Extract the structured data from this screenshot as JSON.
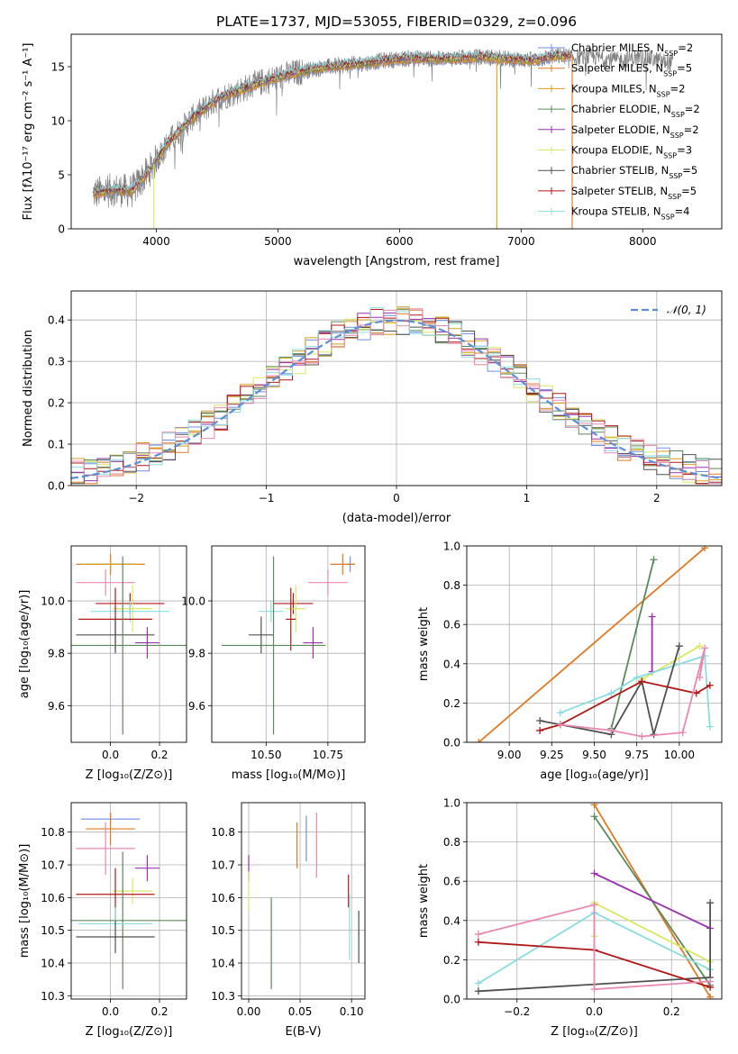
{
  "colors": {
    "Chabrier MILES": "#6f8fe0",
    "Salpeter MILES": "#e07820",
    "Kroupa MILES": "#d4a018",
    "Chabrier ELODIE": "#5a8a5a",
    "Salpeter ELODIE": "#9b30b0",
    "Kroupa ELODIE": "#d8e860",
    "Chabrier STELIB": "#505050",
    "Salpeter STELIB": "#b01818",
    "Kroupa STELIB": "#88dde0",
    "extra_pink": "#e888b0",
    "gauss": "#5b8fd8",
    "spectrum": "#808080"
  },
  "chart_data": [
    {
      "id": "spectrum",
      "type": "line",
      "title": "PLATE=1737, MJD=53055, FIBERID=0329, z=0.096",
      "xlabel": "wavelength [Angstrom, rest frame]",
      "ylabel": "Flux [fλ10⁻¹⁷ erg cm⁻² s⁻¹ A⁻¹]",
      "xlim": [
        3300,
        8650
      ],
      "ylim": [
        0,
        18
      ],
      "xticks": [
        4000,
        5000,
        6000,
        7000,
        8000
      ],
      "yticks": [
        0,
        5,
        10,
        15
      ],
      "legend": [
        {
          "model": "Chabrier MILES",
          "nssp": "2"
        },
        {
          "model": "Salpeter MILES",
          "nssp": "5"
        },
        {
          "model": "Kroupa MILES",
          "nssp": "2"
        },
        {
          "model": "Chabrier ELODIE",
          "nssp": "2"
        },
        {
          "model": "Salpeter ELODIE",
          "nssp": "2"
        },
        {
          "model": "Kroupa ELODIE",
          "nssp": "3"
        },
        {
          "model": "Chabrier STELIB",
          "nssp": "5"
        },
        {
          "model": "Salpeter STELIB",
          "nssp": "5"
        },
        {
          "model": "Kroupa STELIB",
          "nssp": "4"
        }
      ],
      "legend_label_template": "N_SSP=",
      "continuum": {
        "x": [
          3500,
          3650,
          3800,
          3950,
          4100,
          4300,
          4500,
          4700,
          4900,
          5100,
          5300,
          5500,
          5700,
          5900,
          6100,
          6300,
          6500,
          6700,
          6900,
          7100,
          7300,
          7400
        ],
        "y": [
          3.3,
          3.6,
          3.5,
          5.5,
          8.0,
          10.3,
          12.0,
          12.9,
          13.7,
          14.3,
          14.8,
          15.1,
          15.3,
          15.6,
          15.8,
          15.7,
          15.8,
          15.9,
          15.7,
          15.6,
          16.0,
          16.0
        ]
      },
      "data_extension": {
        "x": [
          7400,
          7600,
          7800,
          8000,
          8200
        ],
        "y": [
          15.8,
          15.9,
          15.6,
          15.9,
          15.4
        ]
      },
      "model_cutoffs": [
        {
          "x": 3980,
          "series": "Kroupa ELODIE"
        },
        {
          "x": 6800,
          "series": "Kroupa MILES"
        },
        {
          "x": 7420,
          "series": "Salpeter MILES"
        }
      ]
    },
    {
      "id": "residuals",
      "type": "histogram",
      "xlabel": "(data-model)/error",
      "ylabel": "Normed distribution",
      "xlim": [
        -2.5,
        2.5
      ],
      "ylim": [
        0,
        0.47
      ],
      "xticks": [
        -2,
        -1,
        0,
        1,
        2
      ],
      "yticks": [
        0.0,
        0.1,
        0.2,
        0.3,
        0.4
      ],
      "legend_label": "𝒩(0, 1)",
      "gaussian": {
        "mean": 0,
        "sigma": 1
      },
      "bin_edges_range": [
        -2.5,
        2.5
      ],
      "n_bins": 50,
      "series": [
        "Chabrier MILES",
        "Salpeter MILES",
        "Kroupa MILES",
        "Chabrier ELODIE",
        "Salpeter ELODIE",
        "Kroupa ELODIE",
        "Chabrier STELIB",
        "Salpeter STELIB",
        "Kroupa STELIB",
        "extra_pink"
      ]
    },
    {
      "id": "z_age",
      "type": "errorbar",
      "xlabel": "Z [log₁₀(Z/Z⊙)]",
      "ylabel": "age  [log₁₀(age/yr)]",
      "xlim": [
        -0.16,
        0.31
      ],
      "ylim": [
        9.46,
        10.21
      ],
      "xticks": [
        0.0,
        0.2
      ],
      "yticks": [
        9.6,
        9.8,
        10.0
      ],
      "points": [
        {
          "series": "Chabrier MILES",
          "x": 0.0,
          "xerr": 0.1,
          "y": 10.14,
          "yerr": 0.03
        },
        {
          "series": "Salpeter MILES",
          "x": 0.0,
          "xerr": 0.14,
          "y": 10.14,
          "yerr": 0.04
        },
        {
          "series": "Kroupa MILES",
          "x": 0.0,
          "xerr": 0.12,
          "y": 10.14,
          "yerr": 0.02
        },
        {
          "series": "extra_pink",
          "x": -0.02,
          "xerr": 0.12,
          "y": 10.07,
          "yerr": 0.05
        },
        {
          "series": "Salpeter STELIB",
          "x": 0.08,
          "xerr": 0.14,
          "y": 9.99,
          "yerr": 0.04
        },
        {
          "series": "Kroupa ELODIE",
          "x": 0.09,
          "xerr": 0.08,
          "y": 9.97,
          "yerr": 0.09
        },
        {
          "series": "Kroupa STELIB",
          "x": 0.08,
          "xerr": 0.16,
          "y": 9.96,
          "yerr": 0.04
        },
        {
          "series": "Salpeter STELIB",
          "x": 0.02,
          "xerr": 0.15,
          "y": 9.93,
          "yerr": 0.12
        },
        {
          "series": "Chabrier STELIB",
          "x": 0.02,
          "xerr": 0.16,
          "y": 9.87,
          "yerr": 0.07
        },
        {
          "series": "Salpeter ELODIE",
          "x": 0.15,
          "xerr": 0.05,
          "y": 9.84,
          "yerr": 0.06
        },
        {
          "series": "Chabrier ELODIE",
          "x": 0.05,
          "xerr": 0.26,
          "y": 9.83,
          "yerr": 0.34
        }
      ]
    },
    {
      "id": "mass_age",
      "type": "errorbar",
      "xlabel": "mass [log₁₀(M/M⊙)]",
      "ylabel": "",
      "xlim": [
        10.28,
        10.9
      ],
      "ylim": [
        9.46,
        10.21
      ],
      "xticks": [
        10.5,
        10.75
      ],
      "yticks": [
        9.6,
        9.8,
        10.0
      ],
      "points": [
        {
          "series": "Chabrier MILES",
          "x": 10.84,
          "xerr": 0.02,
          "y": 10.14,
          "yerr": 0.03
        },
        {
          "series": "Salpeter MILES",
          "x": 10.81,
          "xerr": 0.05,
          "y": 10.14,
          "yerr": 0.04
        },
        {
          "series": "extra_pink",
          "x": 10.75,
          "xerr": 0.08,
          "y": 10.07,
          "yerr": 0.05
        },
        {
          "series": "Salpeter STELIB",
          "x": 10.61,
          "xerr": 0.08,
          "y": 9.99,
          "yerr": 0.04
        },
        {
          "series": "Kroupa ELODIE",
          "x": 10.62,
          "xerr": 0.04,
          "y": 9.97,
          "yerr": 0.09
        },
        {
          "series": "Kroupa STELIB",
          "x": 10.52,
          "xerr": 0.05,
          "y": 9.96,
          "yerr": 0.04
        },
        {
          "series": "Salpeter STELIB",
          "x": 10.6,
          "xerr": 0.02,
          "y": 9.93,
          "yerr": 0.12
        },
        {
          "series": "Chabrier STELIB",
          "x": 10.48,
          "xerr": 0.05,
          "y": 9.87,
          "yerr": 0.07
        },
        {
          "series": "Salpeter ELODIE",
          "x": 10.69,
          "xerr": 0.04,
          "y": 9.84,
          "yerr": 0.06
        },
        {
          "series": "Chabrier ELODIE",
          "x": 10.53,
          "xerr": 0.21,
          "y": 9.83,
          "yerr": 0.34
        }
      ]
    },
    {
      "id": "age_weight",
      "type": "line",
      "xlabel": "age  [log₁₀(age/yr)]",
      "ylabel": "mass weight",
      "xlim": [
        8.75,
        10.25
      ],
      "ylim": [
        0,
        1
      ],
      "xticks": [
        9.0,
        9.25,
        9.5,
        9.75,
        10.0
      ],
      "yticks": [
        0.0,
        0.2,
        0.4,
        0.6,
        0.8,
        1.0
      ],
      "series": [
        {
          "series": "Salpeter MILES",
          "x": [
            8.82,
            10.15
          ],
          "y": [
            0.0,
            0.99
          ]
        },
        {
          "series": "Chabrier ELODIE",
          "x": [
            9.6,
            9.85
          ],
          "y": [
            0.07,
            0.93
          ]
        },
        {
          "series": "Salpeter ELODIE",
          "x": [
            9.84,
            9.84
          ],
          "y": [
            0.36,
            0.64
          ]
        },
        {
          "series": "Kroupa ELODIE",
          "x": [
            9.78,
            10.12
          ],
          "y": [
            0.32,
            0.49
          ]
        },
        {
          "series": "Kroupa STELIB",
          "x": [
            9.3,
            9.6,
            9.75,
            10.15,
            10.18
          ],
          "y": [
            0.15,
            0.25,
            0.33,
            0.44,
            0.08
          ]
        },
        {
          "series": "Chabrier STELIB",
          "x": [
            9.18,
            9.6,
            9.78,
            9.85,
            10.0
          ],
          "y": [
            0.11,
            0.04,
            0.31,
            0.04,
            0.49
          ]
        },
        {
          "series": "Salpeter STELIB",
          "x": [
            9.18,
            9.3,
            9.78,
            10.1,
            10.18
          ],
          "y": [
            0.06,
            0.09,
            0.31,
            0.25,
            0.29
          ]
        },
        {
          "series": "extra_pink",
          "x": [
            9.3,
            9.6,
            9.78,
            10.02,
            10.15,
            10.12
          ],
          "y": [
            0.09,
            0.06,
            0.03,
            0.05,
            0.48,
            0.33
          ]
        }
      ]
    },
    {
      "id": "z_mass",
      "type": "errorbar",
      "xlabel": "Z [log₁₀(Z/Z⊙)]",
      "ylabel": "mass [log₁₀(M/M⊙)]",
      "xlim": [
        -0.16,
        0.31
      ],
      "ylim": [
        10.29,
        10.89
      ],
      "xticks": [
        0.0,
        0.2
      ],
      "yticks": [
        10.3,
        10.4,
        10.5,
        10.6,
        10.7,
        10.8
      ],
      "points": [
        {
          "series": "Chabrier MILES",
          "x": 0.0,
          "xerr": 0.12,
          "y": 10.84,
          "yerr": 0.02
        },
        {
          "series": "Salpeter MILES",
          "x": 0.0,
          "xerr": 0.1,
          "y": 10.81,
          "yerr": 0.05
        },
        {
          "series": "extra_pink",
          "x": -0.02,
          "xerr": 0.12,
          "y": 10.75,
          "yerr": 0.08
        },
        {
          "series": "Salpeter ELODIE",
          "x": 0.15,
          "xerr": 0.05,
          "y": 10.69,
          "yerr": 0.04
        },
        {
          "series": "Kroupa ELODIE",
          "x": 0.09,
          "xerr": 0.08,
          "y": 10.62,
          "yerr": 0.04
        },
        {
          "series": "Salpeter STELIB",
          "x": 0.02,
          "xerr": 0.16,
          "y": 10.61,
          "yerr": 0.08
        },
        {
          "series": "Chabrier ELODIE",
          "x": 0.05,
          "xerr": 0.26,
          "y": 10.53,
          "yerr": 0.21
        },
        {
          "series": "Kroupa STELIB",
          "x": 0.02,
          "xerr": 0.15,
          "y": 10.52,
          "yerr": 0.05
        },
        {
          "series": "Chabrier STELIB",
          "x": 0.02,
          "xerr": 0.16,
          "y": 10.48,
          "yerr": 0.05
        }
      ]
    },
    {
      "id": "ebv_mass",
      "type": "errorbar",
      "xlabel": "E(B-V)",
      "ylabel": "",
      "xlim": [
        -0.007,
        0.113
      ],
      "ylim": [
        10.29,
        10.89
      ],
      "xticks": [
        0.0,
        0.05,
        0.1
      ],
      "yticks": [
        10.3,
        10.4,
        10.5,
        10.6,
        10.7,
        10.8
      ],
      "points": [
        {
          "series": "Salpeter ELODIE",
          "x": 0.0,
          "y": 10.69,
          "yerr": 0.04
        },
        {
          "series": "Kroupa ELODIE",
          "x": 0.0,
          "y": 10.62,
          "yerr": 0.06
        },
        {
          "series": "Chabrier ELODIE",
          "x": 0.022,
          "y": 10.46,
          "yerr": 0.14
        },
        {
          "series": "Salpeter MILES",
          "x": 0.047,
          "y": 10.76,
          "yerr": 0.07
        },
        {
          "series": "Chabrier MILES",
          "x": 0.056,
          "y": 10.78,
          "yerr": 0.07
        },
        {
          "series": "extra_pink",
          "x": 0.066,
          "y": 10.76,
          "yerr": 0.1
        },
        {
          "series": "Salpeter STELIB",
          "x": 0.097,
          "y": 10.62,
          "yerr": 0.05
        },
        {
          "series": "Kroupa STELIB",
          "x": 0.098,
          "y": 10.51,
          "yerr": 0.1
        },
        {
          "series": "Chabrier STELIB",
          "x": 0.107,
          "y": 10.48,
          "yerr": 0.08
        }
      ]
    },
    {
      "id": "z_weight",
      "type": "line",
      "xlabel": "Z [log₁₀(Z/Z⊙)]",
      "ylabel": "mass weight",
      "xlim": [
        -0.33,
        0.33
      ],
      "ylim": [
        0,
        1
      ],
      "xticks": [
        -0.2,
        0.0,
        0.2
      ],
      "yticks": [
        0.0,
        0.2,
        0.4,
        0.6,
        0.8,
        1.0
      ],
      "series": [
        {
          "series": "Salpeter MILES",
          "x": [
            0.0,
            0.3
          ],
          "y": [
            0.99,
            0.01
          ]
        },
        {
          "series": "Chabrier ELODIE",
          "x": [
            0.0,
            0.3
          ],
          "y": [
            0.93,
            0.07
          ]
        },
        {
          "series": "Salpeter ELODIE",
          "x": [
            0.0,
            0.3
          ],
          "y": [
            0.64,
            0.36
          ]
        },
        {
          "series": "Kroupa ELODIE",
          "x": [
            0.0,
            0.0,
            0.3
          ],
          "y": [
            0.32,
            0.49,
            0.19
          ]
        },
        {
          "series": "Kroupa STELIB",
          "x": [
            -0.3,
            0.0,
            0.3
          ],
          "y": [
            0.08,
            0.44,
            0.15
          ]
        },
        {
          "series": "Chabrier STELIB",
          "x": [
            -0.3,
            0.3,
            0.3
          ],
          "y": [
            0.04,
            0.11,
            0.49
          ]
        },
        {
          "series": "Salpeter STELIB",
          "x": [
            -0.3,
            0.0,
            0.3
          ],
          "y": [
            0.29,
            0.25,
            0.06
          ]
        },
        {
          "series": "extra_pink",
          "x": [
            -0.3,
            0.0,
            0.0,
            0.3
          ],
          "y": [
            0.33,
            0.48,
            0.05,
            0.09
          ]
        }
      ]
    }
  ]
}
